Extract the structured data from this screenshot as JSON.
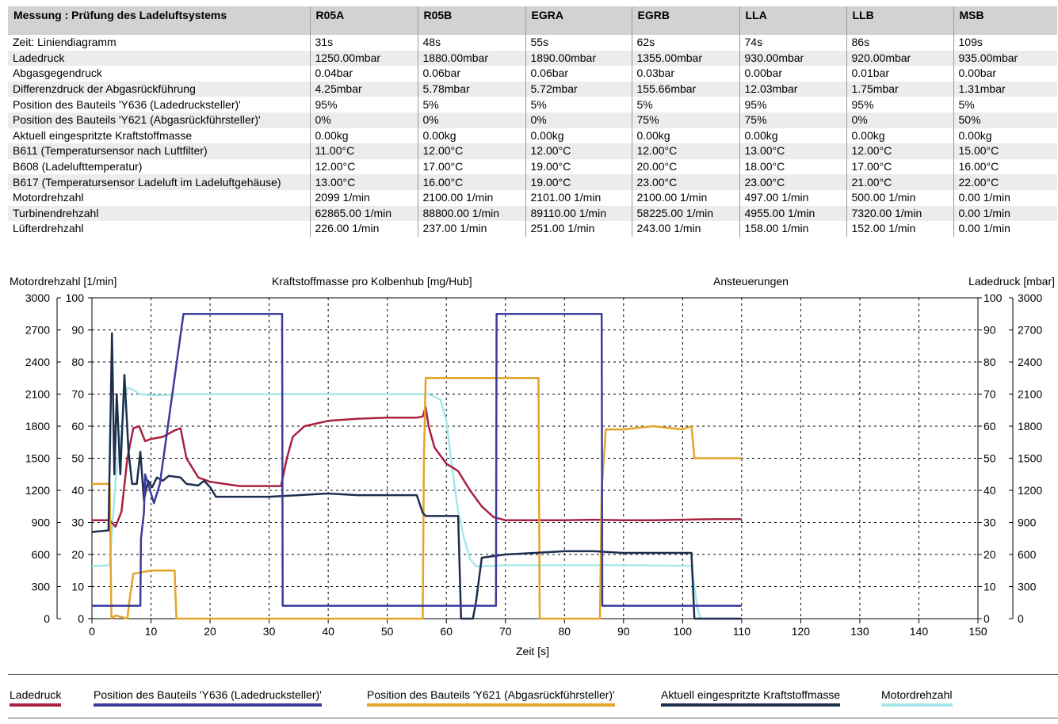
{
  "table": {
    "header": [
      "Messung : Prüfung des Ladeluftsystems",
      "R05A",
      "R05B",
      "EGRA",
      "EGRB",
      "LLA",
      "LLB",
      "MSB"
    ],
    "rows": [
      [
        "Zeit: Liniendiagramm",
        "31s",
        "48s",
        "55s",
        "62s",
        "74s",
        "86s",
        "109s"
      ],
      [
        "Ladedruck",
        "1250.00mbar",
        "1880.00mbar",
        "1890.00mbar",
        "1355.00mbar",
        "930.00mbar",
        "920.00mbar",
        "935.00mbar"
      ],
      [
        "Abgasgegendruck",
        "0.04bar",
        "0.06bar",
        "0.06bar",
        "0.03bar",
        "0.00bar",
        "0.01bar",
        "0.00bar"
      ],
      [
        "Differenzdruck der Abgasrückführung",
        "4.25mbar",
        "5.78mbar",
        "5.72mbar",
        "155.66mbar",
        "12.03mbar",
        "1.75mbar",
        "1.31mbar"
      ],
      [
        "Position des Bauteils 'Y636 (Ladedrucksteller)'",
        "95%",
        "5%",
        "5%",
        "5%",
        "95%",
        "95%",
        "5%"
      ],
      [
        "Position des Bauteils 'Y621 (Abgasrückführsteller)'",
        "0%",
        "0%",
        "0%",
        "75%",
        "75%",
        "0%",
        "50%"
      ],
      [
        "Aktuell eingespritzte Kraftstoffmasse",
        "0.00kg",
        "0.00kg",
        "0.00kg",
        "0.00kg",
        "0.00kg",
        "0.00kg",
        "0.00kg"
      ],
      [
        "B611 (Temperatursensor nach Luftfilter)",
        "11.00°C",
        "12.00°C",
        "12.00°C",
        "12.00°C",
        "13.00°C",
        "12.00°C",
        "15.00°C"
      ],
      [
        "B608 (Ladelufttemperatur)",
        "12.00°C",
        "17.00°C",
        "19.00°C",
        "20.00°C",
        "18.00°C",
        "17.00°C",
        "16.00°C"
      ],
      [
        "B617 (Temperatursensor Ladeluft im Ladeluftgehäuse)",
        "13.00°C",
        "16.00°C",
        "19.00°C",
        "23.00°C",
        "23.00°C",
        "21.00°C",
        "22.00°C"
      ],
      [
        "Motordrehzahl",
        "2099 1/min",
        "2100.00 1/min",
        "2101.00 1/min",
        "2100.00 1/min",
        "497.00 1/min",
        "500.00 1/min",
        "0.00 1/min"
      ],
      [
        "Turbinendrehzahl",
        "62865.00 1/min",
        "88800.00 1/min",
        "89110.00 1/min",
        "58225.00 1/min",
        "4955.00 1/min",
        "7320.00 1/min",
        "0.00 1/min"
      ],
      [
        "Lüfterdrehzahl",
        "226.00 1/min",
        "237.00 1/min",
        "251.00 1/min",
        "243.00 1/min",
        "158.00 1/min",
        "152.00 1/min",
        "0.00 1/min"
      ]
    ]
  },
  "chart_data": {
    "type": "line",
    "left_outer_label": "Motordrehzahl [1/min]",
    "left_inner_label": "Kraftstoffmasse pro Kolbenhub [mg/Hub]",
    "right_inner_label": "Ansteuerungen",
    "right_outer_label": "Ladedruck [mbar]",
    "xlabel": "Zeit [s]",
    "xlim": [
      0,
      150
    ],
    "xticks": [
      0,
      10,
      20,
      30,
      40,
      50,
      60,
      70,
      80,
      90,
      100,
      110,
      120,
      130,
      140,
      150
    ],
    "ylim_percent": [
      0,
      100
    ],
    "yticks_percent": [
      0,
      10,
      20,
      30,
      40,
      50,
      60,
      70,
      80,
      90,
      100
    ],
    "ylim_rpm": [
      0,
      3000
    ],
    "yticks_rpm": [
      0,
      300,
      600,
      900,
      1200,
      1500,
      1800,
      2100,
      2400,
      2700,
      3000
    ],
    "grid": true,
    "series": [
      {
        "name": "Ladedruck",
        "color": "#a8213f",
        "scale": "rpm",
        "x": [
          0,
          3,
          4,
          5,
          6,
          7,
          8,
          9,
          10,
          12,
          14,
          15,
          16,
          18,
          20,
          25,
          30,
          32,
          33,
          34,
          36,
          40,
          45,
          50,
          55,
          56,
          56.5,
          57,
          58,
          60,
          62,
          64,
          66,
          68,
          70,
          75,
          80,
          85,
          90,
          95,
          100,
          105,
          110
        ],
        "y": [
          920,
          920,
          860,
          1000,
          1500,
          1780,
          1800,
          1660,
          1680,
          1700,
          1760,
          1780,
          1500,
          1320,
          1280,
          1240,
          1240,
          1240,
          1500,
          1700,
          1800,
          1850,
          1870,
          1880,
          1880,
          1890,
          1980,
          1800,
          1600,
          1450,
          1380,
          1200,
          1050,
          950,
          920,
          920,
          920,
          925,
          920,
          920,
          925,
          930,
          930
        ]
      },
      {
        "name": "Position des Bauteils 'Y636 (Ladedrucksteller)'",
        "color": "#3c3c9e",
        "scale": "percent",
        "x": [
          0,
          8.2,
          8.3,
          8.8,
          9.0,
          10.5,
          11.5,
          15.5,
          15.6,
          32.2,
          32.3,
          68.4,
          68.5,
          86.3,
          86.4,
          110
        ],
        "y": [
          4,
          4,
          25,
          33,
          45,
          36,
          42,
          95,
          95,
          95,
          4,
          4,
          95,
          95,
          4,
          4
        ]
      },
      {
        "name": "Position des Bauteils 'Y621 (Abgasrückführsteller)'",
        "color": "#e3a42a",
        "scale": "percent",
        "x": [
          0,
          3,
          3.3,
          4,
          6,
          6.3,
          7,
          10,
          11.5,
          14,
          14.3,
          20,
          40,
          56,
          56.2,
          56.5,
          75.6,
          75.8,
          86,
          86.3,
          87,
          90,
          95,
          100,
          101.5,
          102,
          110
        ],
        "y": [
          42,
          42,
          0,
          1,
          0,
          5,
          14,
          15,
          15,
          15,
          0,
          0,
          0,
          0,
          50,
          75,
          75,
          0,
          0,
          40,
          59,
          59,
          60,
          59,
          60,
          50,
          50
        ]
      },
      {
        "name": "Aktuell eingespritzte Kraftstoffmasse",
        "color": "#1e2e4e",
        "scale": "percent",
        "x": [
          0,
          2.8,
          3.4,
          3.8,
          4.2,
          4.8,
          5.5,
          6.2,
          6.8,
          7.6,
          8.2,
          8.8,
          9.5,
          10.2,
          11,
          12,
          13,
          15,
          16,
          18,
          19,
          20,
          21,
          25,
          30,
          35,
          40,
          45,
          50,
          55,
          56,
          56.5,
          60,
          62,
          62.5,
          63,
          64,
          64.5,
          65,
          66,
          68,
          70,
          75,
          80,
          85,
          90,
          95,
          100,
          101.5,
          102,
          103,
          110
        ],
        "y": [
          27,
          27.5,
          89,
          45,
          70,
          45,
          76,
          52,
          42,
          42,
          52,
          37,
          43,
          41,
          44,
          43,
          44.5,
          44,
          42,
          41.5,
          43,
          41,
          38,
          38,
          38,
          38.5,
          39,
          38.5,
          38.5,
          38.5,
          33,
          32,
          32,
          32,
          0,
          0,
          0,
          0,
          5,
          19,
          19.5,
          20,
          20.5,
          21,
          21,
          20.5,
          20.5,
          20.5,
          20.5,
          0,
          0,
          0
        ]
      },
      {
        "name": "Motordrehzahl",
        "color": "#a6e8ea",
        "scale": "rpm",
        "x": [
          0,
          3,
          4,
          5,
          5.5,
          6,
          7,
          8,
          10,
          12,
          15,
          20,
          30,
          40,
          50,
          55,
          57,
          59,
          60,
          61,
          62,
          63,
          64,
          65,
          66,
          68,
          70,
          80,
          90,
          100,
          101.5,
          102.5,
          103,
          110
        ],
        "y": [
          490,
          500,
          1300,
          1750,
          2050,
          2160,
          2140,
          2100,
          2090,
          2090,
          2100,
          2100,
          2100,
          2100,
          2100,
          2100,
          2100,
          2050,
          1850,
          1400,
          1000,
          750,
          560,
          490,
          490,
          495,
          500,
          500,
          500,
          495,
          495,
          100,
          0,
          0
        ]
      }
    ],
    "legend": [
      {
        "label": "Ladedruck",
        "color": "#a8213f"
      },
      {
        "label": "Position des Bauteils 'Y636 (Ladedrucksteller)'",
        "color": "#3c3c9e"
      },
      {
        "label": "Position des Bauteils 'Y621 (Abgasrückführsteller)'",
        "color": "#e3a42a"
      },
      {
        "label": "Aktuell eingespritzte Kraftstoffmasse",
        "color": "#1e2e4e"
      },
      {
        "label": "Motordrehzahl",
        "color": "#a6e8ea"
      }
    ]
  }
}
